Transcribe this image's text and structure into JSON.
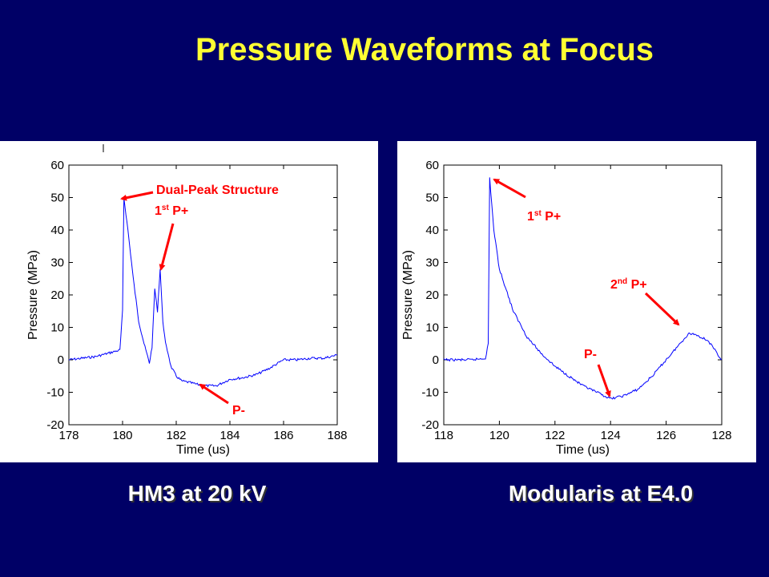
{
  "title": "Pressure Waveforms at Focus",
  "colors": {
    "background": "#000066",
    "title": "#ffff33",
    "trace": "#0000ff",
    "annotation": "#ff0000"
  },
  "chart_data": [
    {
      "type": "line",
      "caption": "HM3 at 20 kV",
      "xlabel": "Time (us)",
      "ylabel": "Pressure (MPa)",
      "xlim": [
        178,
        188
      ],
      "ylim": [
        -20,
        60
      ],
      "xticks": [
        "178",
        "180",
        "182",
        "184",
        "186",
        "188"
      ],
      "yticks": [
        "60",
        "50",
        "40",
        "30",
        "20",
        "10",
        "0",
        "-10",
        "-20"
      ],
      "grid": false,
      "annotations": [
        {
          "text": "Dual-Peak Structure"
        },
        {
          "text": "1",
          "sup": "st",
          "rest": " P+"
        },
        {
          "text": "P-"
        }
      ],
      "series": [
        {
          "x": [
            178.0,
            179.0,
            179.9,
            180.0,
            180.05,
            180.2,
            180.4,
            180.6,
            180.8,
            181.0,
            181.1,
            181.2,
            181.3,
            181.4,
            181.5,
            181.6,
            181.7,
            181.8,
            182.0,
            182.2,
            182.5,
            183.0,
            183.5,
            184.0,
            184.5,
            185.0,
            185.5,
            186.0,
            186.5,
            187.0,
            187.5,
            188.0
          ],
          "y": [
            0,
            1,
            3,
            15,
            50,
            40,
            25,
            12,
            5,
            -1,
            4,
            22,
            15,
            28,
            12,
            5,
            2,
            -2,
            -5,
            -6.5,
            -7,
            -8,
            -8,
            -6,
            -5.5,
            -4.5,
            -2.5,
            0,
            0,
            0.5,
            0.5,
            1.5
          ]
        }
      ]
    },
    {
      "type": "line",
      "caption": "Modularis at E4.0",
      "xlabel": "Time (us)",
      "ylabel": "Pressure (MPa)",
      "xlim": [
        118,
        128
      ],
      "ylim": [
        -20,
        60
      ],
      "xticks": [
        "118",
        "120",
        "122",
        "124",
        "126",
        "128"
      ],
      "yticks": [
        "60",
        "50",
        "40",
        "30",
        "20",
        "10",
        "0",
        "-10",
        "-20"
      ],
      "grid": false,
      "annotations": [
        {
          "text": "1",
          "sup": "st",
          "rest": "  P+"
        },
        {
          "text": "2",
          "sup": "nd",
          "rest": " P+"
        },
        {
          "text": "P-"
        }
      ],
      "series": [
        {
          "x": [
            118.0,
            119.0,
            119.5,
            119.6,
            119.65,
            119.8,
            120.0,
            120.5,
            121.0,
            121.5,
            122.0,
            122.5,
            123.0,
            123.5,
            124.0,
            124.5,
            125.0,
            125.5,
            126.0,
            126.5,
            126.8,
            127.0,
            127.5,
            128.0
          ],
          "y": [
            0,
            0,
            0.5,
            5,
            56,
            40,
            28,
            15,
            7,
            2,
            -2,
            -5,
            -8,
            -10,
            -12,
            -11,
            -9,
            -5,
            0,
            5,
            8,
            8,
            6,
            0
          ]
        }
      ]
    }
  ]
}
